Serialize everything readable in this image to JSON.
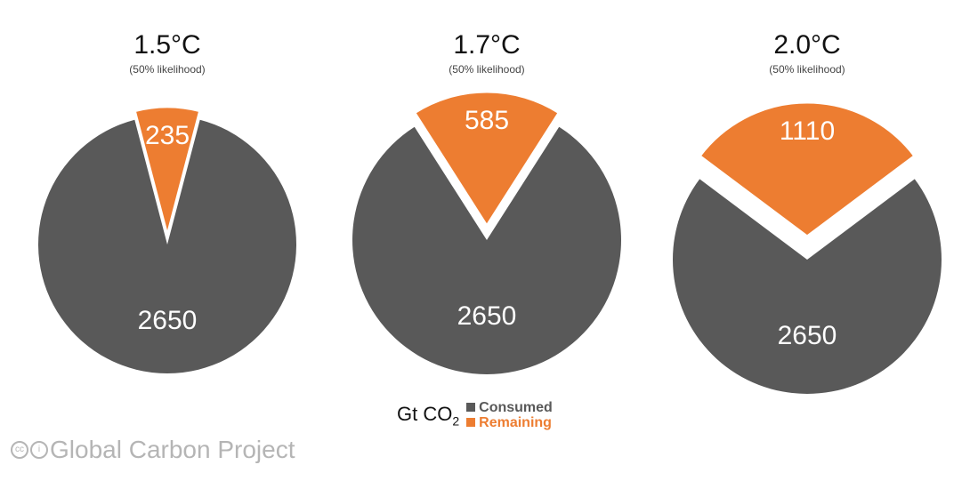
{
  "chart_data": {
    "type": "pie",
    "unit_label": "Gt CO",
    "unit_subscript": "2",
    "legend": [
      {
        "name": "Consumed",
        "color": "#595959"
      },
      {
        "name": "Remaining",
        "color": "#ed7d31"
      }
    ],
    "charts": [
      {
        "title": "1.5°C",
        "subtitle": "(50% likelihood)",
        "consumed": 2650,
        "remaining": 235,
        "consumed_label": "2650",
        "remaining_label": "235"
      },
      {
        "title": "1.7°C",
        "subtitle": "(50% likelihood)",
        "consumed": 2650,
        "remaining": 585,
        "consumed_label": "2650",
        "remaining_label": "585"
      },
      {
        "title": "2.0°C",
        "subtitle": "(50% likelihood)",
        "consumed": 2650,
        "remaining": 1110,
        "consumed_label": "2650",
        "remaining_label": "1110"
      }
    ]
  },
  "credit": "Global Carbon Project",
  "credit_icons": [
    "cc",
    "by"
  ]
}
